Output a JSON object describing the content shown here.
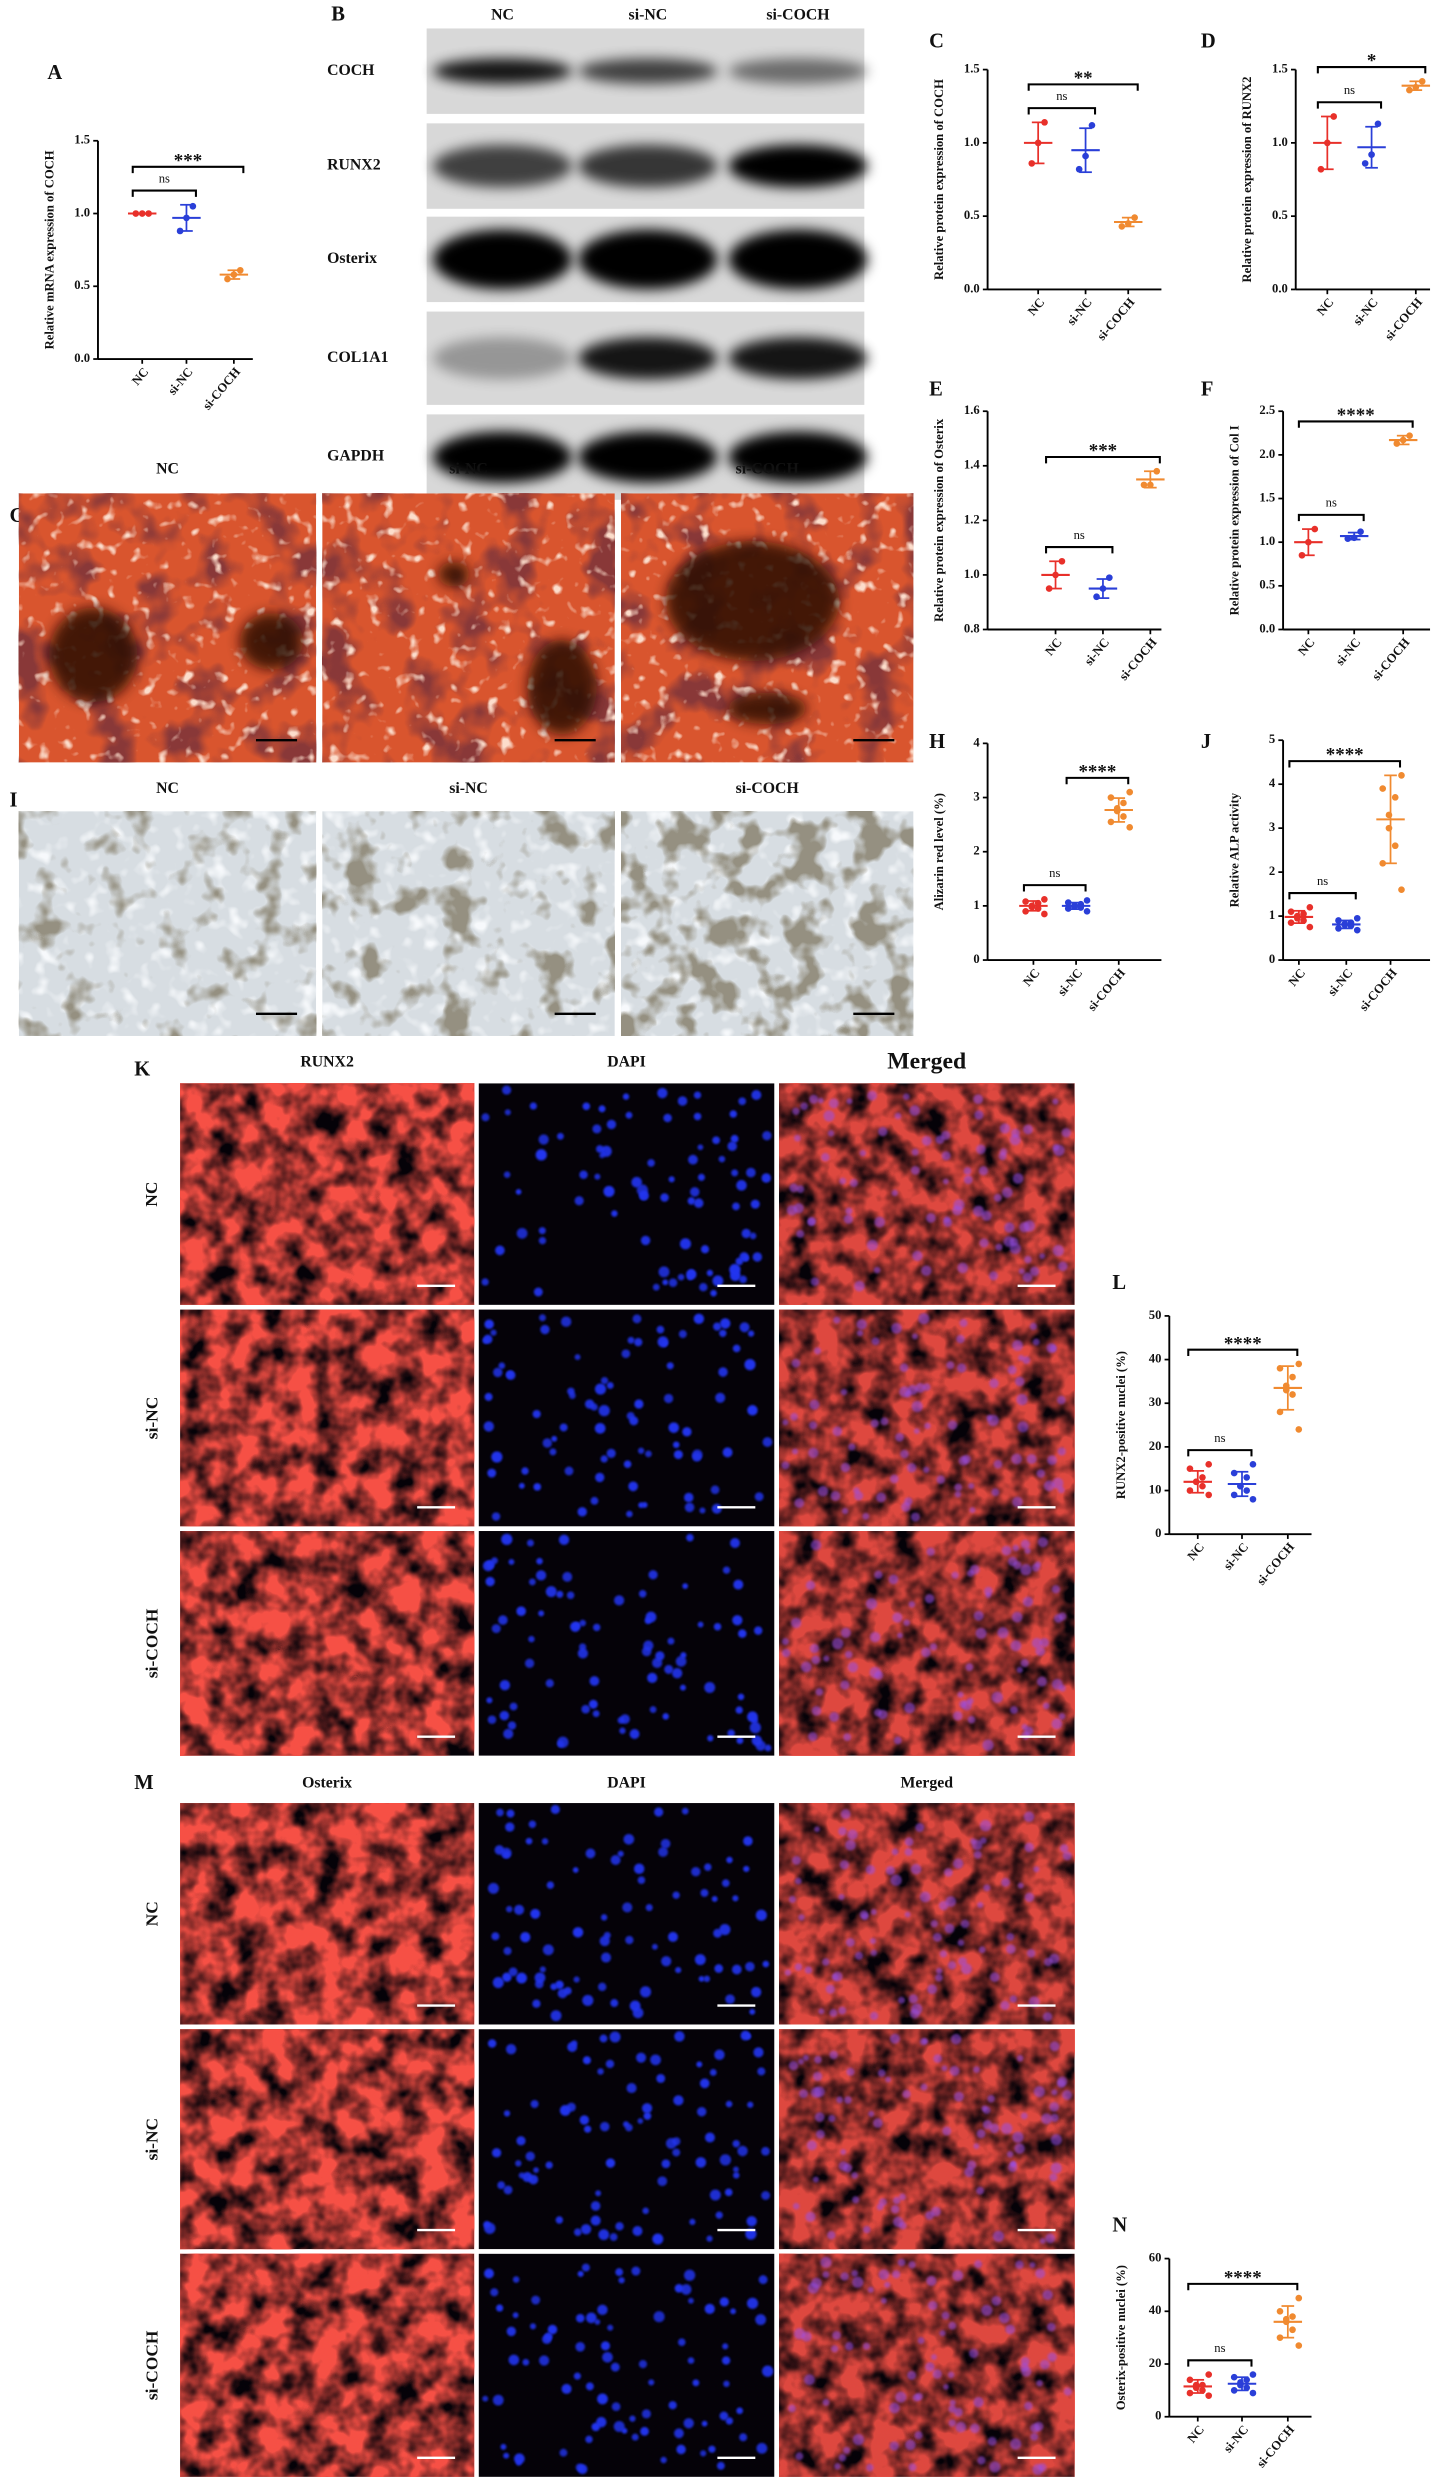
{
  "blot": {
    "panel": "B",
    "columns": [
      "NC",
      "si-NC",
      "si-COCH"
    ],
    "rows": [
      "COCH",
      "RUNX2",
      "Osterix",
      "COL1A1",
      "GAPDH"
    ]
  },
  "staining": [
    {
      "panel": "G",
      "columns": [
        "NC",
        "si-NC",
        "si-COCH"
      ]
    },
    {
      "panel": "I",
      "columns": [
        "NC",
        "si-NC",
        "si-COCH"
      ]
    }
  ],
  "fluorescence": [
    {
      "panel": "K",
      "columns": [
        "RUNX2",
        "DAPI",
        "Merged"
      ],
      "rows": [
        "NC",
        "si-NC",
        "si-COCH"
      ]
    },
    {
      "panel": "M",
      "columns": [
        "Osterix",
        "DAPI",
        "Merged"
      ],
      "rows": [
        "NC",
        "si-NC",
        "si-COCH"
      ]
    }
  ],
  "chart_data": [
    {
      "type": "dot",
      "panel": "A",
      "ylabel": "Relative mRNA expression of COCH",
      "categories": [
        "NC",
        "si-NC",
        "si-COCH"
      ],
      "colors": [
        "#e8302a",
        "#2a3fd8",
        "#f08a30"
      ],
      "ylim": [
        0,
        1.5
      ],
      "yticks": [
        {
          "value": 0,
          "label": "0.0"
        },
        0.5,
        {
          "value": 1,
          "label": "1.0"
        },
        1.5
      ],
      "points": [
        [
          1,
          1,
          1
        ],
        [
          1.05,
          0.97,
          0.88
        ],
        [
          0.61,
          0.58,
          0.55
        ]
      ],
      "mean": [
        1,
        0.97,
        0.58
      ],
      "sd": [
        0,
        0.09,
        0.03
      ],
      "brackets": [
        {
          "from": "NC",
          "to": "si-NC",
          "label": "ns"
        },
        {
          "from": "NC",
          "to": "si-COCH",
          "label": "***"
        }
      ]
    },
    {
      "type": "dot",
      "panel": "C",
      "ylabel": "Relative protein expression of COCH",
      "categories": [
        "NC",
        "si-NC",
        "si-COCH"
      ],
      "colors": [
        "#e8302a",
        "#2a3fd8",
        "#f08a30"
      ],
      "ylim": [
        0,
        1.5
      ],
      "yticks": [
        {
          "value": 0,
          "label": "0.0"
        },
        0.5,
        {
          "value": 1,
          "label": "1.0"
        },
        1.5
      ],
      "points": [
        [
          1.14,
          1.0,
          0.86
        ],
        [
          1.12,
          0.91,
          0.82
        ],
        [
          0.49,
          0.45,
          0.43
        ]
      ],
      "mean": [
        1,
        0.95,
        0.46
      ],
      "sd": [
        0.14,
        0.15,
        0.03
      ],
      "brackets": [
        {
          "from": "NC",
          "to": "si-NC",
          "label": "ns"
        },
        {
          "from": "NC",
          "to": "si-COCH",
          "label": "**"
        }
      ]
    },
    {
      "type": "dot",
      "panel": "D",
      "ylabel": "Relative protein expression of RUNX2",
      "categories": [
        "NC",
        "si-NC",
        "si-COCH"
      ],
      "colors": [
        "#e8302a",
        "#2a3fd8",
        "#f08a30"
      ],
      "ylim": [
        0,
        1.5
      ],
      "yticks": [
        {
          "value": 0,
          "label": "0.0"
        },
        0.5,
        {
          "value": 1,
          "label": "1.0"
        },
        1.5
      ],
      "points": [
        [
          1.18,
          1.0,
          0.82
        ],
        [
          1.13,
          0.92,
          0.86
        ],
        [
          1.42,
          1.38,
          1.36
        ]
      ],
      "mean": [
        1,
        0.97,
        1.39
      ],
      "sd": [
        0.18,
        0.14,
        0.03
      ],
      "brackets": [
        {
          "from": "NC",
          "to": "si-NC",
          "label": "ns"
        },
        {
          "from": "NC",
          "to": "si-COCH",
          "label": "*"
        }
      ]
    },
    {
      "type": "dot",
      "panel": "E",
      "ylabel": "Relative protein expression of Osterix",
      "categories": [
        "NC",
        "si-NC",
        "si-COCH"
      ],
      "colors": [
        "#e8302a",
        "#2a3fd8",
        "#f08a30"
      ],
      "ylim": [
        0.8,
        1.6
      ],
      "yticks": [
        0.8,
        {
          "value": 1,
          "label": "1.0"
        },
        1.2,
        1.4,
        1.6
      ],
      "points": [
        [
          1.05,
          1.0,
          0.95
        ],
        [
          0.99,
          0.95,
          0.92
        ],
        [
          1.38,
          1.33,
          1.33
        ]
      ],
      "mean": [
        1,
        0.95,
        1.35
      ],
      "sd": [
        0.05,
        0.035,
        0.03
      ],
      "brackets": [
        {
          "from": "NC",
          "to": "si-NC",
          "label": "ns"
        },
        {
          "from": "NC",
          "to": "si-COCH",
          "label": "***"
        }
      ]
    },
    {
      "type": "dot",
      "panel": "F",
      "ylabel": "Relative protein expression of Col I",
      "categories": [
        "NC",
        "si-NC",
        "si-COCH"
      ],
      "colors": [
        "#e8302a",
        "#2a3fd8",
        "#f08a30"
      ],
      "ylim": [
        0,
        2.5
      ],
      "yticks": [
        {
          "value": 0,
          "label": "0.0"
        },
        0.5,
        {
          "value": 1,
          "label": "1.0"
        },
        1.5,
        {
          "value": 2,
          "label": "2.0"
        },
        2.5
      ],
      "points": [
        [
          1.15,
          1.0,
          0.85
        ],
        [
          1.12,
          1.05,
          1.04
        ],
        [
          2.22,
          2.17,
          2.13
        ]
      ],
      "mean": [
        1,
        1.07,
        2.17
      ],
      "sd": [
        0.15,
        0.04,
        0.05
      ],
      "brackets": [
        {
          "from": "NC",
          "to": "si-NC",
          "label": "ns"
        },
        {
          "from": "NC",
          "to": "si-COCH",
          "label": "****"
        }
      ]
    },
    {
      "type": "dot",
      "panel": "H",
      "ylabel": "Alizarin red level (%)",
      "categories": [
        "NC",
        "si-NC",
        "si-COCH"
      ],
      "colors": [
        "#e8302a",
        "#2a3fd8",
        "#f08a30"
      ],
      "ylim": [
        0,
        4
      ],
      "yticks": [
        0,
        1,
        2,
        3,
        4
      ],
      "points": [
        [
          1.12,
          1.08,
          1.05,
          1.0,
          0.98,
          0.95,
          0.9,
          0.85
        ],
        [
          1.1,
          1.06,
          1.03,
          1.0,
          0.99,
          0.97,
          0.95,
          0.9
        ],
        [
          3.1,
          3.0,
          2.9,
          2.8,
          2.75,
          2.65,
          2.55,
          2.45
        ]
      ],
      "mean": [
        1,
        1,
        2.77
      ],
      "sd": [
        0.09,
        0.06,
        0.22
      ],
      "brackets": [
        {
          "from": "NC",
          "to": "si-NC",
          "label": "ns"
        },
        {
          "from": "si-NC",
          "to": "si-COCH",
          "label": "****"
        }
      ]
    },
    {
      "type": "dot",
      "panel": "J",
      "ylabel": "Relative ALP activity",
      "categories": [
        "NC",
        "si-NC",
        "si-COCH"
      ],
      "colors": [
        "#e8302a",
        "#2a3fd8",
        "#f08a30"
      ],
      "ylim": [
        0,
        5
      ],
      "yticks": [
        0,
        1,
        2,
        3,
        4,
        5
      ],
      "points": [
        [
          1.2,
          1.1,
          1.05,
          1.0,
          0.95,
          0.9,
          0.85,
          0.75
        ],
        [
          0.95,
          0.9,
          0.85,
          0.82,
          0.8,
          0.78,
          0.72,
          0.68
        ],
        [
          4.2,
          3.9,
          3.7,
          3.3,
          3.0,
          2.6,
          2.2,
          1.6
        ]
      ],
      "mean": [
        0.98,
        0.81,
        3.2
      ],
      "sd": [
        0.14,
        0.09,
        1.0
      ],
      "brackets": [
        {
          "from": "NC",
          "to": "si-NC",
          "label": "ns"
        },
        {
          "from": "NC",
          "to": "si-COCH",
          "label": "****"
        }
      ]
    },
    {
      "type": "dot",
      "panel": "L",
      "ylabel": "RUNX2-positive nuclei (%)",
      "categories": [
        "NC",
        "si-NC",
        "si-COCH"
      ],
      "colors": [
        "#e8302a",
        "#2a3fd8",
        "#f08a30"
      ],
      "ylim": [
        0,
        50
      ],
      "yticks": [
        0,
        10,
        20,
        30,
        40,
        50
      ],
      "points": [
        [
          16,
          15,
          13,
          12,
          12,
          11,
          10,
          9
        ],
        [
          16,
          14,
          13,
          11,
          11,
          10,
          9,
          8
        ],
        [
          39,
          38,
          36,
          34,
          33,
          32,
          28,
          24
        ]
      ],
      "mean": [
        12,
        11.5,
        33.5
      ],
      "sd": [
        2.5,
        2.8,
        5
      ],
      "brackets": [
        {
          "from": "NC",
          "to": "si-NC",
          "label": "ns"
        },
        {
          "from": "NC",
          "to": "si-COCH",
          "label": "****"
        }
      ]
    },
    {
      "type": "dot",
      "panel": "N",
      "ylabel": "Osterix-positive nuclei (%)",
      "categories": [
        "NC",
        "si-NC",
        "si-COCH"
      ],
      "colors": [
        "#e8302a",
        "#2a3fd8",
        "#f08a30"
      ],
      "ylim": [
        0,
        60
      ],
      "yticks": [
        0,
        20,
        40,
        60
      ],
      "points": [
        [
          16,
          14,
          12,
          12,
          11,
          10,
          9,
          8
        ],
        [
          16,
          15,
          14,
          13,
          12,
          11,
          10,
          9
        ],
        [
          45,
          40,
          38,
          37,
          36,
          33,
          30,
          27
        ]
      ],
      "mean": [
        11.5,
        12.5,
        36
      ],
      "sd": [
        2.5,
        2.5,
        6
      ],
      "brackets": [
        {
          "from": "NC",
          "to": "si-NC",
          "label": "ns"
        },
        {
          "from": "NC",
          "to": "si-COCH",
          "label": "****"
        }
      ]
    }
  ]
}
